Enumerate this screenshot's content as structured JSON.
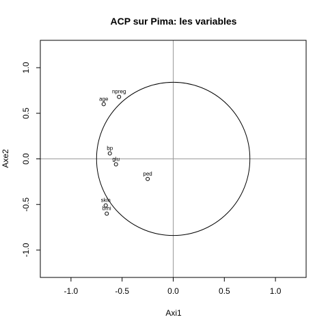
{
  "chart_data": {
    "type": "scatter",
    "title": "ACP sur Pima: les variables",
    "xlabel": "Axi1",
    "ylabel": "Axe2",
    "xlim": [
      -1.3,
      1.3
    ],
    "ylim": [
      -1.3,
      1.3
    ],
    "x_ticks": [
      -1.0,
      -0.5,
      0.0,
      0.5,
      1.0
    ],
    "x_tick_labels": [
      "-1.0",
      "-0.5",
      "0.0",
      "0.5",
      "1.0"
    ],
    "y_ticks": [
      -1.0,
      -0.5,
      0.0,
      0.5,
      1.0
    ],
    "y_tick_labels": [
      "-1.0",
      "-0.5",
      "0.0",
      "0.5",
      "1.0"
    ],
    "reference_lines": {
      "x": 0,
      "y": 0,
      "color": "#999999"
    },
    "circle": {
      "cx": 0,
      "cy": 0,
      "rx": 0.75,
      "ry": 0.84
    },
    "grid": false,
    "points": [
      {
        "label": "npreg",
        "x": -0.53,
        "y": 0.68
      },
      {
        "label": "age",
        "x": -0.68,
        "y": 0.6
      },
      {
        "label": "bp",
        "x": -0.62,
        "y": 0.06
      },
      {
        "label": "glu",
        "x": -0.56,
        "y": -0.06
      },
      {
        "label": "ped",
        "x": -0.25,
        "y": -0.22
      },
      {
        "label": "skin",
        "x": -0.66,
        "y": -0.51
      },
      {
        "label": "bmi",
        "x": -0.65,
        "y": -0.6
      }
    ]
  }
}
